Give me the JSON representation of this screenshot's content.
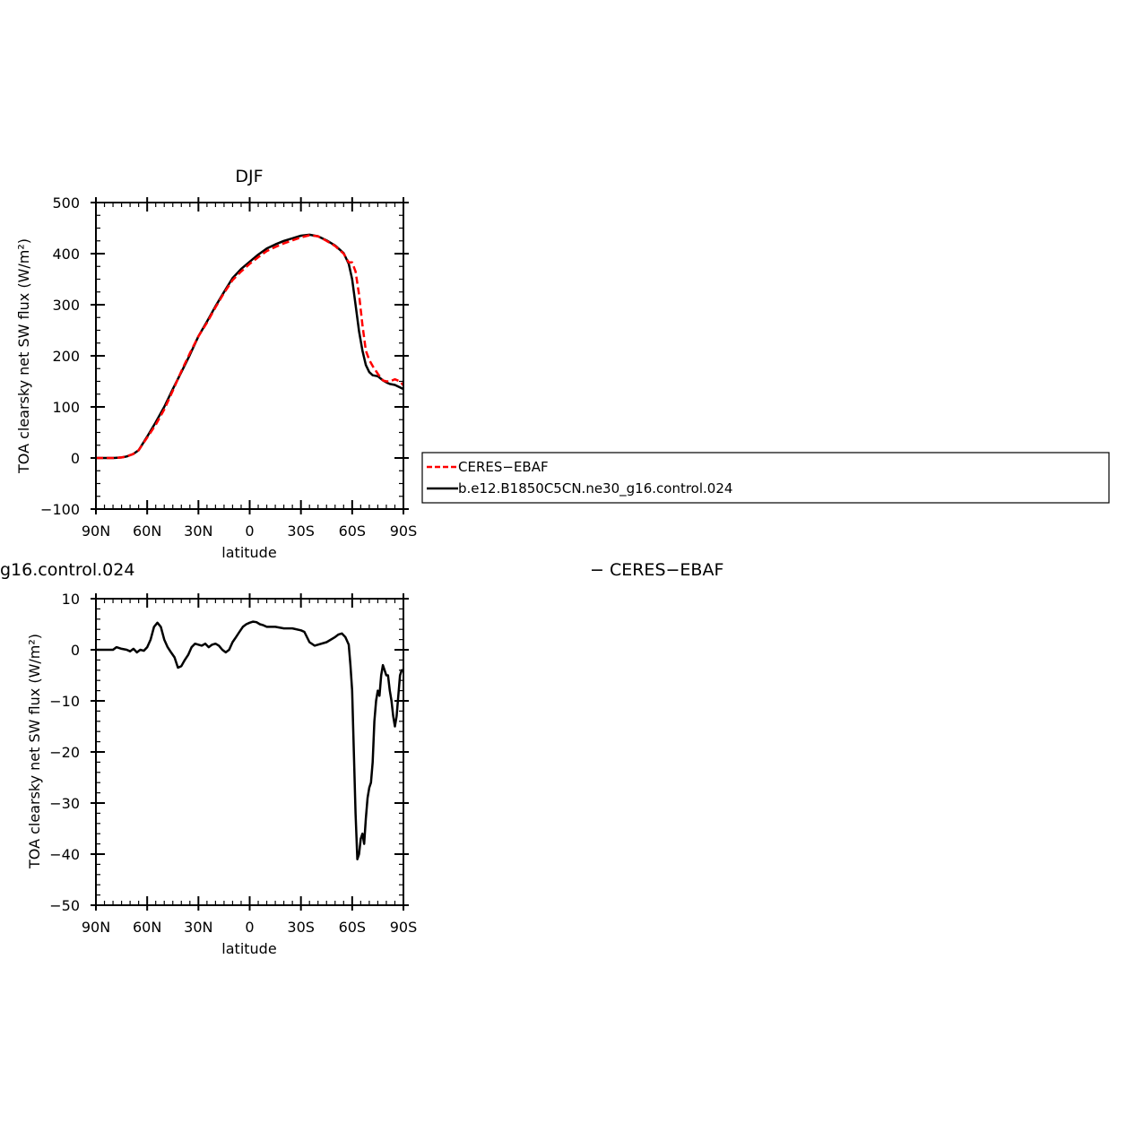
{
  "chart_data": [
    {
      "type": "line",
      "title": "DJF",
      "xlabel": "latitude",
      "ylabel": "TOA clearsky net SW flux (W/m²)",
      "xlim": [
        90,
        -90
      ],
      "ylim": [
        -100,
        500
      ],
      "x_ticks": [
        90,
        60,
        30,
        0,
        -30,
        -60,
        -90
      ],
      "x_tick_labels": [
        "90N",
        "60N",
        "30N",
        "0",
        "30S",
        "60S",
        "90S"
      ],
      "y_ticks": [
        -100,
        0,
        100,
        200,
        300,
        400,
        500
      ],
      "y_tick_labels": [
        "−100",
        "0",
        "100",
        "200",
        "300",
        "400",
        "500"
      ],
      "series": [
        {
          "name": "CERES-EBAF",
          "color": "#ff0000",
          "style": "dashed",
          "x": [
            90,
            85,
            80,
            75,
            72,
            68,
            65,
            60,
            55,
            50,
            45,
            40,
            35,
            30,
            25,
            20,
            15,
            10,
            5,
            0,
            -5,
            -10,
            -15,
            -20,
            -25,
            -30,
            -35,
            -40,
            -45,
            -50,
            -55,
            -58,
            -60,
            -62,
            -64,
            -66,
            -68,
            -70,
            -72,
            -75,
            -78,
            -80,
            -82,
            -85,
            -88,
            -90
          ],
          "y": [
            0,
            0,
            0,
            1,
            3,
            8,
            15,
            40,
            65,
            95,
            132,
            170,
            205,
            238,
            265,
            295,
            323,
            348,
            365,
            380,
            393,
            405,
            413,
            420,
            426,
            432,
            436,
            434,
            425,
            415,
            400,
            383,
            383,
            365,
            320,
            260,
            210,
            192,
            180,
            165,
            152,
            150,
            150,
            154,
            150,
            142
          ]
        },
        {
          "name": "b.e12.B1850C5CN.ne30_g16.control.024",
          "color": "#000000",
          "style": "solid",
          "x": [
            90,
            85,
            80,
            75,
            72,
            68,
            65,
            60,
            55,
            50,
            45,
            40,
            35,
            30,
            25,
            20,
            15,
            10,
            5,
            0,
            -5,
            -10,
            -15,
            -20,
            -25,
            -30,
            -35,
            -40,
            -45,
            -50,
            -55,
            -58,
            -60,
            -62,
            -64,
            -66,
            -68,
            -70,
            -72,
            -75,
            -78,
            -80,
            -82,
            -85,
            -88,
            -90
          ],
          "y": [
            0,
            0,
            0,
            1,
            3,
            8,
            15,
            42,
            70,
            100,
            135,
            168,
            202,
            238,
            267,
            297,
            325,
            352,
            370,
            384,
            398,
            410,
            418,
            425,
            430,
            435,
            437,
            434,
            426,
            416,
            401,
            380,
            350,
            300,
            248,
            210,
            182,
            168,
            162,
            160,
            152,
            148,
            145,
            143,
            138,
            135
          ]
        }
      ]
    },
    {
      "type": "line",
      "title": "",
      "partial_title_left": "g16.control.024",
      "partial_title_right": "− CERES−EBAF",
      "xlabel": "latitude",
      "ylabel": "TOA clearsky net SW flux (W/m²)",
      "xlim": [
        90,
        -90
      ],
      "ylim": [
        -50,
        10
      ],
      "x_ticks": [
        90,
        60,
        30,
        0,
        -30,
        -60,
        -90
      ],
      "x_tick_labels": [
        "90N",
        "60N",
        "30N",
        "0",
        "30S",
        "60S",
        "90S"
      ],
      "y_ticks": [
        -50,
        -40,
        -30,
        -20,
        -10,
        0,
        10
      ],
      "y_tick_labels": [
        "−50",
        "−40",
        "−30",
        "−20",
        "−10",
        "0",
        "10"
      ],
      "series": [
        {
          "color": "#000000",
          "style": "solid",
          "x": [
            90,
            80,
            78,
            75,
            72,
            70,
            68,
            66,
            64,
            62,
            60,
            58,
            56,
            54,
            52,
            50,
            48,
            46,
            44,
            42,
            40,
            38,
            36,
            34,
            32,
            30,
            28,
            26,
            24,
            22,
            20,
            18,
            16,
            14,
            12,
            10,
            8,
            6,
            4,
            2,
            0,
            -2,
            -4,
            -6,
            -8,
            -10,
            -15,
            -20,
            -25,
            -30,
            -32,
            -35,
            -38,
            -40,
            -45,
            -50,
            -52,
            -54,
            -56,
            -58,
            -59,
            -60,
            -61,
            -62,
            -63,
            -64,
            -65,
            -66,
            -67,
            -68,
            -69,
            -70,
            -71,
            -72,
            -73,
            -74,
            -75,
            -76,
            -77,
            -78,
            -79,
            -80,
            -81,
            -82,
            -83,
            -84,
            -85,
            -86,
            -87,
            -88,
            -89,
            -90
          ],
          "y": [
            0,
            0,
            0.5,
            0.2,
            0,
            -0.3,
            0.2,
            -0.5,
            0,
            -0.2,
            0.5,
            2,
            4.5,
            5.3,
            4.5,
            2,
            0.5,
            -0.5,
            -1.5,
            -3.5,
            -3.2,
            -2,
            -1,
            0.5,
            1.2,
            1,
            0.8,
            1.2,
            0.5,
            1,
            1.2,
            0.8,
            0,
            -0.5,
            0,
            1.5,
            2.5,
            3.5,
            4.5,
            5,
            5.3,
            5.5,
            5.4,
            5,
            4.8,
            4.5,
            4.5,
            4.2,
            4.2,
            3.8,
            3.5,
            1.5,
            0.8,
            1,
            1.5,
            2.5,
            3,
            3.2,
            2.5,
            1,
            -3,
            -8,
            -20,
            -32,
            -41,
            -40,
            -37,
            -36,
            -38,
            -33,
            -29,
            -27,
            -26,
            -22,
            -14,
            -10,
            -8,
            -9,
            -5,
            -3,
            -4,
            -5,
            -5,
            -8,
            -10,
            -13,
            -15,
            -13,
            -9,
            -5,
            -4,
            -4
          ]
        }
      ]
    }
  ],
  "legend": {
    "entries": [
      {
        "label": "CERES−EBAF",
        "color": "#ff0000",
        "style": "dashed"
      },
      {
        "label": "b.e12.B1850C5CN.ne30_g16.control.024",
        "color": "#000000",
        "style": "solid"
      }
    ]
  }
}
